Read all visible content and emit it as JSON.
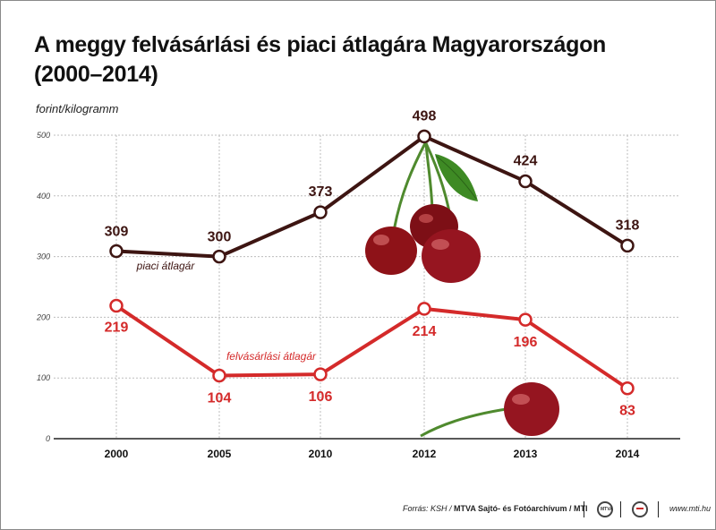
{
  "title_line1": "A meggy felvásárlási és piaci átlagára Magyarországon",
  "title_line2": "(2000–2014)",
  "unit_label": "forint/kilogramm",
  "footer": {
    "source_prefix": "Forrás: KSH / ",
    "source_bold": "MTVA Sajtó- és Fotóarchívum / MTI",
    "logo1_text": "MTVA",
    "website": "www.mti.hu"
  },
  "colors": {
    "piaci": "#3d1512",
    "felvasarlasi": "#d42a2a",
    "grid": "#bdbdbd",
    "cherry": "#8e1218",
    "stem": "#4f8a2e"
  },
  "icons": [
    "cherry-cluster-icon",
    "single-cherry-icon",
    "mtva-logo-icon",
    "mti-logo-icon"
  ],
  "chart_data": {
    "type": "line",
    "categories": [
      "2000",
      "2005",
      "2010",
      "2012",
      "2013",
      "2014"
    ],
    "ylim": [
      0,
      500
    ],
    "yticks": [
      0,
      100,
      200,
      300,
      400,
      500
    ],
    "grid": true,
    "series": [
      {
        "name": "piaci átlagár",
        "values": [
          309,
          300,
          373,
          498,
          424,
          318
        ],
        "color": "#3d1512"
      },
      {
        "name": "felvásárlási átlagár",
        "values": [
          219,
          104,
          106,
          214,
          196,
          83
        ],
        "color": "#d42a2a"
      }
    ]
  }
}
